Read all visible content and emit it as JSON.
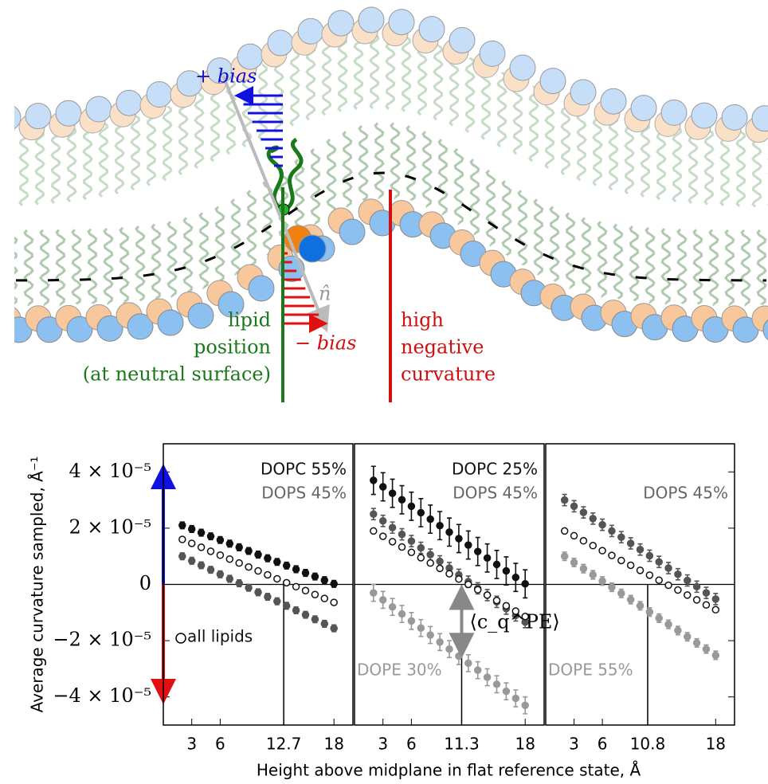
{
  "diagram": {
    "plus_bias": "+ bias",
    "minus_bias": "− bias",
    "normal": "n̂",
    "lipid_position": [
      "lipid",
      "position",
      "(at neutral surface)"
    ],
    "curvature": [
      "high",
      "negative",
      "curvature"
    ]
  },
  "chart_data": [
    {
      "type": "scatter",
      "xlabel": "Height above midplane in flat reference state, Å",
      "ylabel": "Average curvature sampled, Å⁻¹",
      "xlim": [
        0,
        20
      ],
      "xticks": [
        3,
        6,
        12.7,
        18
      ],
      "zero_crossing": 12.7,
      "ylim": [
        -5e-05,
        5e-05
      ],
      "yticks": [
        {
          "value": 4e-05,
          "label": "4 × 10⁻⁵"
        },
        {
          "value": 2e-05,
          "label": "2 × 10⁻⁵"
        },
        0,
        {
          "value": -2e-05,
          "label": "−2 × 10⁻⁵"
        },
        {
          "value": -4e-05,
          "label": "−4 × 10⁻⁵"
        }
      ],
      "x": [
        2,
        3,
        4,
        5,
        6,
        7,
        8,
        9,
        10,
        11,
        12,
        13,
        14,
        15,
        16,
        17,
        18
      ],
      "series": [
        {
          "name": "DOPC 55%",
          "color": "#111111",
          "marker": "filled",
          "values": [
            2.1e-05,
            1.97e-05,
            1.84e-05,
            1.71e-05,
            1.58e-05,
            1.45e-05,
            1.32e-05,
            1.19e-05,
            1.06e-05,
            9.3e-06,
            8e-06,
            6.7e-06,
            5.4e-06,
            4.1e-06,
            2.8e-06,
            1.5e-06,
            2e-07
          ],
          "errors": [
            1.2e-06,
            1.2e-06,
            1.2e-06,
            1.2e-06,
            1.2e-06,
            1.2e-06,
            1.2e-06,
            1.2e-06,
            1.2e-06,
            1.2e-06,
            1.2e-06,
            1.2e-06,
            1.2e-06,
            1.2e-06,
            1.2e-06,
            1.2e-06,
            1.2e-06
          ]
        },
        {
          "name": "DOPS 45%",
          "color": "#555555",
          "marker": "filled",
          "values": [
            1e-05,
            8.4e-06,
            6.8e-06,
            5.2e-06,
            3.6e-06,
            2e-06,
            4e-07,
            -1.2e-06,
            -2.8e-06,
            -4.4e-06,
            -6e-06,
            -7.6e-06,
            -9.2e-06,
            -1.08e-05,
            -1.24e-05,
            -1.4e-05,
            -1.56e-05
          ],
          "errors": [
            1.2e-06,
            1.2e-06,
            1.2e-06,
            1.2e-06,
            1.2e-06,
            1.2e-06,
            1.2e-06,
            1.2e-06,
            1.2e-06,
            1.2e-06,
            1.2e-06,
            1.2e-06,
            1.2e-06,
            1.2e-06,
            1.2e-06,
            1.2e-06,
            1.2e-06
          ]
        },
        {
          "name": "all lipids",
          "color": "#111111",
          "marker": "open",
          "values": [
            1.6e-05,
            1.46e-05,
            1.32e-05,
            1.18e-05,
            1.04e-05,
            9e-06,
            7.6e-06,
            6.2e-06,
            4.8e-06,
            3.4e-06,
            2e-06,
            6e-07,
            -8e-07,
            -2.2e-06,
            -3.6e-06,
            -5e-06,
            -6.4e-06
          ]
        }
      ]
    },
    {
      "type": "scatter",
      "xlim": [
        0,
        20
      ],
      "xticks": [
        3,
        6,
        11.3,
        18
      ],
      "zero_crossing": 11.3,
      "ylim": [
        -5e-05,
        5e-05
      ],
      "annotation": "⟨c_q^PE⟩",
      "x": [
        2,
        3,
        4,
        5,
        6,
        7,
        8,
        9,
        10,
        11,
        12,
        13,
        14,
        15,
        16,
        17,
        18
      ],
      "series": [
        {
          "name": "DOPC 25%",
          "color": "#111111",
          "marker": "filled",
          "values": [
            3.7e-05,
            3.47e-05,
            3.24e-05,
            3.01e-05,
            2.78e-05,
            2.55e-05,
            2.32e-05,
            2.09e-05,
            1.86e-05,
            1.63e-05,
            1.4e-05,
            1.17e-05,
            9.4e-06,
            7.1e-06,
            4.8e-06,
            2.5e-06,
            2e-07
          ],
          "errors": [
            5e-06,
            5e-06,
            5e-06,
            5e-06,
            5e-06,
            5e-06,
            5e-06,
            5e-06,
            5e-06,
            5e-06,
            5e-06,
            5e-06,
            5e-06,
            5e-06,
            5e-06,
            5e-06,
            5e-06
          ]
        },
        {
          "name": "DOPS 45%",
          "color": "#555555",
          "marker": "filled",
          "values": [
            2.5e-05,
            2.26e-05,
            2.02e-05,
            1.78e-05,
            1.54e-05,
            1.3e-05,
            1.06e-05,
            8.2e-06,
            5.8e-06,
            3.4e-06,
            1e-06,
            -1.4e-06,
            -3.8e-06,
            -6.2e-06,
            -8.6e-06,
            -1.1e-05,
            -1.34e-05
          ],
          "errors": [
            2e-06,
            2e-06,
            2e-06,
            2e-06,
            2e-06,
            2e-06,
            2e-06,
            2e-06,
            2e-06,
            2e-06,
            2e-06,
            2e-06,
            2e-06,
            2e-06,
            2e-06,
            2e-06,
            2e-06
          ]
        },
        {
          "color": "#111111",
          "marker": "open",
          "values": [
            1.9e-05,
            1.71e-05,
            1.52e-05,
            1.33e-05,
            1.14e-05,
            9.5e-06,
            7.6e-06,
            5.7e-06,
            3.8e-06,
            1.9e-06,
            0.0,
            -1.9e-06,
            -3.8e-06,
            -5.7e-06,
            -7.6e-06,
            -9.5e-06,
            -1.14e-05
          ]
        },
        {
          "name": "DOPE 30%",
          "color": "#999999",
          "marker": "filled",
          "values": [
            -3e-06,
            -5.5e-06,
            -8e-06,
            -1.05e-05,
            -1.3e-05,
            -1.55e-05,
            -1.8e-05,
            -2.05e-05,
            -2.3e-05,
            -2.55e-05,
            -2.8e-05,
            -3.05e-05,
            -3.3e-05,
            -3.55e-05,
            -3.8e-05,
            -4.05e-05,
            -4.3e-05
          ],
          "errors": [
            3e-06,
            3e-06,
            3e-06,
            3e-06,
            3e-06,
            3e-06,
            3e-06,
            3e-06,
            3e-06,
            3e-06,
            3e-06,
            3e-06,
            3e-06,
            3e-06,
            3e-06,
            3e-06,
            3e-06
          ]
        }
      ]
    },
    {
      "type": "scatter",
      "xlim": [
        0,
        20
      ],
      "xticks": [
        3,
        6,
        10.8,
        18
      ],
      "zero_crossing": 10.8,
      "ylim": [
        -5e-05,
        5e-05
      ],
      "x": [
        2,
        3,
        4,
        5,
        6,
        7,
        8,
        9,
        10,
        11,
        12,
        13,
        14,
        15,
        16,
        17,
        18
      ],
      "series": [
        {
          "name": "DOPS 45%",
          "color": "#555555",
          "marker": "filled",
          "values": [
            3e-05,
            2.78e-05,
            2.56e-05,
            2.34e-05,
            2.12e-05,
            1.9e-05,
            1.68e-05,
            1.46e-05,
            1.24e-05,
            1.02e-05,
            8e-06,
            5.8e-06,
            3.6e-06,
            1.4e-06,
            -8e-07,
            -3e-06,
            -5.2e-06
          ],
          "errors": [
            2e-06,
            2e-06,
            2e-06,
            2e-06,
            2e-06,
            2e-06,
            2e-06,
            2e-06,
            2e-06,
            2e-06,
            2e-06,
            2e-06,
            2e-06,
            2e-06,
            2e-06,
            2e-06,
            2e-06
          ]
        },
        {
          "color": "#111111",
          "marker": "open",
          "values": [
            1.9e-05,
            1.73e-05,
            1.55e-05,
            1.38e-05,
            1.2e-05,
            1.03e-05,
            8.5e-06,
            6.8e-06,
            5e-06,
            3.3e-06,
            1.5e-06,
            -3e-07,
            -2e-06,
            -3.8e-06,
            -5.5e-06,
            -7.3e-06,
            -9e-06
          ]
        },
        {
          "name": "DOPE 55%",
          "color": "#999999",
          "marker": "filled",
          "values": [
            1e-05,
            7.8e-06,
            5.6e-06,
            3.4e-06,
            1.2e-06,
            -1e-06,
            -3.2e-06,
            -5.4e-06,
            -7.6e-06,
            -9.8e-06,
            -1.2e-05,
            -1.42e-05,
            -1.64e-05,
            -1.86e-05,
            -2.08e-05,
            -2.3e-05,
            -2.52e-05
          ],
          "errors": [
            1.5e-06,
            1.5e-06,
            1.5e-06,
            1.5e-06,
            1.5e-06,
            1.5e-06,
            1.5e-06,
            1.5e-06,
            1.5e-06,
            1.5e-06,
            1.5e-06,
            1.5e-06,
            1.5e-06,
            1.5e-06,
            1.5e-06,
            1.5e-06,
            1.5e-06
          ]
        }
      ]
    }
  ]
}
